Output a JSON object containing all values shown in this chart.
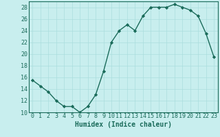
{
  "x": [
    0,
    1,
    2,
    3,
    4,
    5,
    6,
    7,
    8,
    9,
    10,
    11,
    12,
    13,
    14,
    15,
    16,
    17,
    18,
    19,
    20,
    21,
    22,
    23
  ],
  "y": [
    15.5,
    14.5,
    13.5,
    12.0,
    11.0,
    11.0,
    10.0,
    11.0,
    13.0,
    17.0,
    22.0,
    24.0,
    25.0,
    24.0,
    26.5,
    28.0,
    28.0,
    28.0,
    28.5,
    28.0,
    27.5,
    26.5,
    23.5,
    19.5
  ],
  "line_color": "#1a6b5a",
  "marker": "D",
  "marker_size": 2.2,
  "bg_color": "#c8eeee",
  "grid_color": "#aadddd",
  "xlabel": "Humidex (Indice chaleur)",
  "ylim": [
    10,
    29
  ],
  "xlim": [
    -0.5,
    23.5
  ],
  "yticks": [
    10,
    12,
    14,
    16,
    18,
    20,
    22,
    24,
    26,
    28
  ],
  "xticks": [
    0,
    1,
    2,
    3,
    4,
    5,
    6,
    7,
    8,
    9,
    10,
    11,
    12,
    13,
    14,
    15,
    16,
    17,
    18,
    19,
    20,
    21,
    22,
    23
  ],
  "font_color": "#1a6b5a",
  "xlabel_fontsize": 7.0,
  "tick_fontsize": 6.0,
  "linewidth": 1.0
}
